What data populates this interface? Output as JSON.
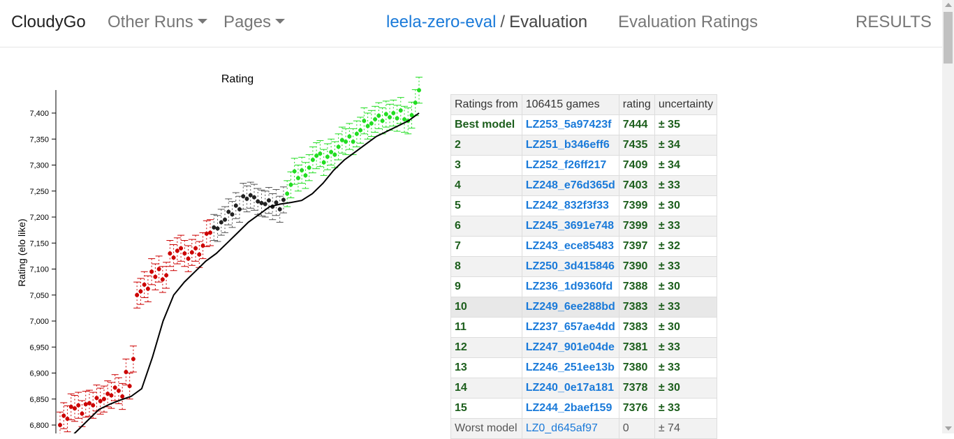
{
  "nav": {
    "brand": "CloudyGo",
    "other_runs": "Other Runs",
    "pages": "Pages",
    "run": "leela-zero-eval",
    "separator": "/",
    "page": "Evaluation",
    "eval_ratings": "Evaluation Ratings",
    "results": "RESULTS"
  },
  "table": {
    "headers": [
      "Ratings from",
      "106415 games",
      "rating",
      "uncertainty"
    ],
    "rows": [
      {
        "rank": "Best model",
        "model": "LZ253_5a97423f",
        "rating": "7444",
        "uncertainty": "± 35"
      },
      {
        "rank": "2",
        "model": "LZ251_b346eff6",
        "rating": "7435",
        "uncertainty": "± 34"
      },
      {
        "rank": "3",
        "model": "LZ252_f26ff217",
        "rating": "7409",
        "uncertainty": "± 34"
      },
      {
        "rank": "4",
        "model": "LZ248_e76d365d",
        "rating": "7403",
        "uncertainty": "± 33"
      },
      {
        "rank": "5",
        "model": "LZ242_832f3f33",
        "rating": "7399",
        "uncertainty": "± 30"
      },
      {
        "rank": "6",
        "model": "LZ245_3691e748",
        "rating": "7399",
        "uncertainty": "± 33"
      },
      {
        "rank": "7",
        "model": "LZ243_ece85483",
        "rating": "7397",
        "uncertainty": "± 32"
      },
      {
        "rank": "8",
        "model": "LZ250_3d415846",
        "rating": "7390",
        "uncertainty": "± 33"
      },
      {
        "rank": "9",
        "model": "LZ236_1d9360fd",
        "rating": "7388",
        "uncertainty": "± 30"
      },
      {
        "rank": "10",
        "model": "LZ249_6ee288bd",
        "rating": "7383",
        "uncertainty": "± 33"
      },
      {
        "rank": "11",
        "model": "LZ237_657ae4dd",
        "rating": "7383",
        "uncertainty": "± 30"
      },
      {
        "rank": "12",
        "model": "LZ247_901e04de",
        "rating": "7381",
        "uncertainty": "± 33"
      },
      {
        "rank": "13",
        "model": "LZ246_251ee13b",
        "rating": "7380",
        "uncertainty": "± 33"
      },
      {
        "rank": "14",
        "model": "LZ240_0e17a181",
        "rating": "7378",
        "uncertainty": "± 30"
      },
      {
        "rank": "15",
        "model": "LZ244_2baef159",
        "rating": "7376",
        "uncertainty": "± 33"
      },
      {
        "rank": "Worst model",
        "model": "LZ0_d645af97",
        "rating": "0",
        "uncertainty": "± 74"
      }
    ]
  },
  "chart_data": {
    "type": "scatter",
    "title": "Rating",
    "ylabel": "Rating (elo like)",
    "xlabel": "",
    "ylim": [
      6780,
      7440
    ],
    "yticks": [
      "6,800",
      "6,850",
      "6,900",
      "6,950",
      "7,000",
      "7,050",
      "7,100",
      "7,150",
      "7,200",
      "7,250",
      "7,300",
      "7,350",
      "7,400"
    ],
    "ytick_values": [
      6800,
      6850,
      6900,
      6950,
      7000,
      7050,
      7100,
      7150,
      7200,
      7250,
      7300,
      7350,
      7400
    ],
    "error_bar": 25,
    "colors": {
      "low": "#cc0000",
      "mid": "#222222",
      "high": "#22dd22",
      "trend": "#000000"
    },
    "points": [
      6800,
      6818,
      6812,
      6835,
      6832,
      6838,
      6822,
      6840,
      6842,
      6838,
      6852,
      6846,
      6850,
      6860,
      6857,
      6872,
      6866,
      6855,
      6902,
      6875,
      6927,
      7050,
      7057,
      7070,
      7062,
      7095,
      7085,
      7100,
      7080,
      7088,
      7130,
      7122,
      7135,
      7140,
      7130,
      7120,
      7132,
      7140,
      7128,
      7145,
      7168,
      7170,
      7180,
      7178,
      7190,
      7195,
      7210,
      7205,
      7222,
      7215,
      7240,
      7235,
      7242,
      7238,
      7230,
      7227,
      7225,
      7232,
      7220,
      7228,
      7215,
      7233,
      7245,
      7262,
      7288,
      7275,
      7290,
      7280,
      7295,
      7310,
      7318,
      7322,
      7305,
      7316,
      7325,
      7320,
      7335,
      7348,
      7345,
      7355,
      7345,
      7360,
      7367,
      7385,
      7375,
      7380,
      7388,
      7395,
      7385,
      7398,
      7392,
      7400,
      7390,
      7405,
      7388,
      7385,
      7396,
      7420,
      7444
    ],
    "trend": [
      6770,
      6790,
      6810,
      6830,
      6840,
      6848,
      6855,
      6870,
      6930,
      7000,
      7050,
      7075,
      7095,
      7115,
      7130,
      7150,
      7170,
      7190,
      7205,
      7220,
      7225,
      7228,
      7232,
      7245,
      7265,
      7290,
      7310,
      7325,
      7340,
      7355,
      7365,
      7375,
      7385,
      7400
    ]
  }
}
